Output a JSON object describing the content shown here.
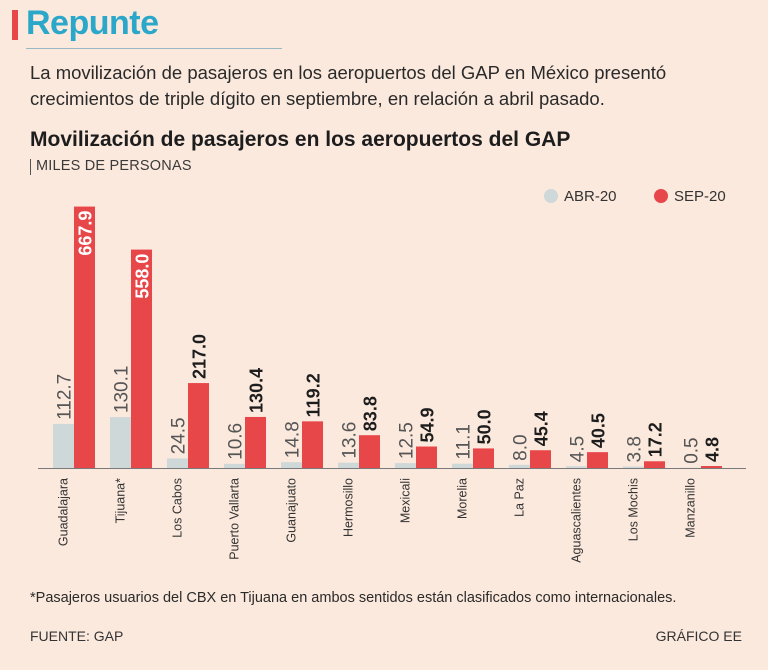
{
  "brand": {
    "title": "Repunte"
  },
  "subtitle": "La movilización de pasajeros en los aeropuertos del GAP en México presentó crecimientos de triple dígito en septiembre, en relación a abril pasado.",
  "legend": {
    "abr_label": "ABR-20",
    "sep_label": "SEP-20"
  },
  "colors": {
    "abr": "#cfd8d8",
    "sep": "#e8474a",
    "accent": "#2aa7c9"
  },
  "chart_data": {
    "type": "bar",
    "title": "Movilización de pasajeros en los aeropuertos del GAP",
    "ylabel": "MILES DE PERSONAS",
    "ylim": [
      0,
      700
    ],
    "categories": [
      "Guadalajara",
      "Tijuana*",
      "Los Cabos",
      "Puerto Vallarta",
      "Guanajuato",
      "Hermosillo",
      "Mexicali",
      "Morelia",
      "La Paz",
      "Aguascalientes",
      "Los Mochis",
      "Manzanillo"
    ],
    "series": [
      {
        "name": "ABR-20",
        "values": [
          112.7,
          130.1,
          24.5,
          10.6,
          14.8,
          13.6,
          12.5,
          11.1,
          8.0,
          4.5,
          3.8,
          0.5
        ],
        "labels": [
          "112.7",
          "130.1",
          "24.5",
          "10.6",
          "14.8",
          "13.6",
          "12.5",
          "11.1",
          "8.0",
          "4.5",
          "3.8",
          "0.5"
        ]
      },
      {
        "name": "SEP-20",
        "values": [
          667.9,
          558.0,
          217.0,
          130.4,
          119.2,
          83.8,
          54.9,
          50.0,
          45.4,
          40.5,
          17.2,
          4.8
        ],
        "labels": [
          "667.9",
          "558.0",
          "217.0",
          "130.4",
          "119.2",
          "83.8",
          "54.9",
          "50.0",
          "45.4",
          "40.5",
          "17.2",
          "4.8"
        ]
      }
    ]
  },
  "footnote": "*Pasajeros usuarios del CBX en Tijuana en ambos sentidos están clasificados como internacionales.",
  "source": "FUENTE: GAP",
  "credit": "GRÁFICO EE"
}
